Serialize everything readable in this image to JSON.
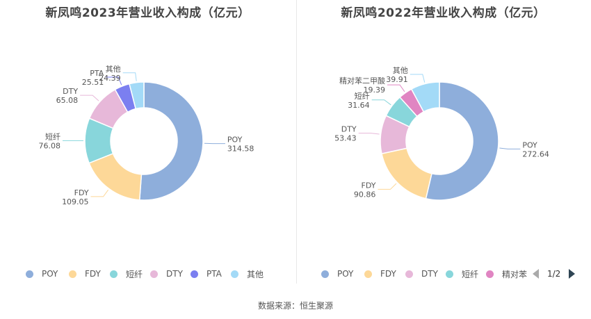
{
  "source": "数据来源：恒生聚源",
  "pager": {
    "text": "1/2"
  },
  "colors": {
    "POY": "#8eaedb",
    "FDY": "#fdd898",
    "短纤": "#88d6db",
    "DTY": "#e7b8d9",
    "PTA": "#7b7ff0",
    "其他": "#a3daf7",
    "精对苯二甲酸": "#e085c2"
  },
  "chart_data": [
    {
      "type": "pie",
      "title": "新凤鸣2023年营业收入构成（亿元）",
      "slices": [
        {
          "name": "POY",
          "value": 314.58,
          "label": "314.58"
        },
        {
          "name": "FDY",
          "value": 109.05,
          "label": "109.05"
        },
        {
          "name": "短纤",
          "value": 76.08,
          "label": "76.08"
        },
        {
          "name": "DTY",
          "value": 65.08,
          "label": "65.08"
        },
        {
          "name": "PTA",
          "value": 25.51,
          "label": "25.51"
        },
        {
          "name": "其他",
          "value": 24.39,
          "label": "24.39"
        }
      ],
      "legend": [
        "POY",
        "FDY",
        "短纤",
        "DTY",
        "PTA",
        "其他"
      ]
    },
    {
      "type": "pie",
      "title": "新凤鸣2022年营业收入构成（亿元）",
      "slices": [
        {
          "name": "POY",
          "value": 272.64,
          "label": "272.64"
        },
        {
          "name": "FDY",
          "value": 90.86,
          "label": "90.86"
        },
        {
          "name": "DTY",
          "value": 53.43,
          "label": "53.43"
        },
        {
          "name": "短纤",
          "value": 31.64,
          "label": "31.64"
        },
        {
          "name": "精对苯二甲酸",
          "value": 19.39,
          "label": "19.39"
        },
        {
          "name": "其他",
          "value": 39.91,
          "label": "39.91"
        }
      ],
      "legend": [
        "POY",
        "FDY",
        "DTY",
        "短纤",
        "精对苯"
      ]
    }
  ]
}
